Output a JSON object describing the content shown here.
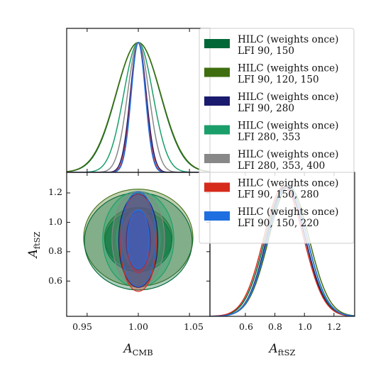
{
  "chart_data": {
    "type": "corner-triangle",
    "parameters": [
      {
        "name": "A",
        "subscript": "CMB",
        "range": [
          0.93,
          1.07
        ],
        "ticks": [
          "0.95",
          "1.00",
          "1.05"
        ],
        "tick_values": [
          0.95,
          1.0,
          1.05
        ]
      },
      {
        "name": "A",
        "subscript": "ftSZ",
        "range": [
          0.36,
          1.34
        ],
        "ticks": [
          "0.6",
          "0.8",
          "1.0",
          "1.2"
        ],
        "tick_values": [
          0.6,
          0.8,
          1.0,
          1.2
        ]
      }
    ],
    "legend": {
      "placement": "top-right",
      "style": "filled-patch"
    },
    "series": [
      {
        "name_line1": "HILC (weights once)",
        "name_line2": "LFI 90, 150",
        "color": "#006837",
        "A_CMB": {
          "mean": 1.0,
          "sigma": 0.0215
        },
        "A_ftSZ": {
          "mean": 0.87,
          "sigma": 0.135
        },
        "corr": 0.0
      },
      {
        "name_line1": "HILC (weights once)",
        "name_line2": "LFI 90, 120, 150",
        "color": "#3f6e10",
        "A_CMB": {
          "mean": 1.0,
          "sigma": 0.0218
        },
        "A_ftSZ": {
          "mean": 0.895,
          "sigma": 0.135
        },
        "corr": 0.0
      },
      {
        "name_line1": "HILC (weights once)",
        "name_line2": "LFI 90, 280",
        "color": "#1a1a6e",
        "A_CMB": {
          "mean": 1.0,
          "sigma": 0.0078
        },
        "A_ftSZ": {
          "mean": 0.875,
          "sigma": 0.13
        },
        "corr": 0.0
      },
      {
        "name_line1": "HILC (weights once)",
        "name_line2": "LFI 280, 353",
        "color": "#1a9e6a",
        "A_CMB": {
          "mean": 1.0,
          "sigma": 0.0142
        },
        "A_ftSZ": {
          "mean": 0.885,
          "sigma": 0.133
        },
        "corr": 0.0
      },
      {
        "name_line1": "HILC (weights once)",
        "name_line2": "LFI 280, 353, 400",
        "color": "#888888",
        "A_CMB": {
          "mean": 1.0,
          "sigma": 0.0105
        },
        "A_ftSZ": {
          "mean": 0.885,
          "sigma": 0.133
        },
        "corr": 0.0
      },
      {
        "name_line1": "HILC (weights once)",
        "name_line2": "LFI 90, 150, 280",
        "color": "#d62a1a",
        "A_CMB": {
          "mean": 1.0,
          "sigma": 0.0072
        },
        "A_ftSZ": {
          "mean": 0.86,
          "sigma": 0.135
        },
        "corr": 0.0
      },
      {
        "name_line1": "HILC (weights once)",
        "name_line2": "LFI 90, 150, 220",
        "color": "#1f6fe0",
        "A_CMB": {
          "mean": 1.0,
          "sigma": 0.0069
        },
        "A_ftSZ": {
          "mean": 0.885,
          "sigma": 0.132
        },
        "corr": 0.0
      }
    ]
  }
}
